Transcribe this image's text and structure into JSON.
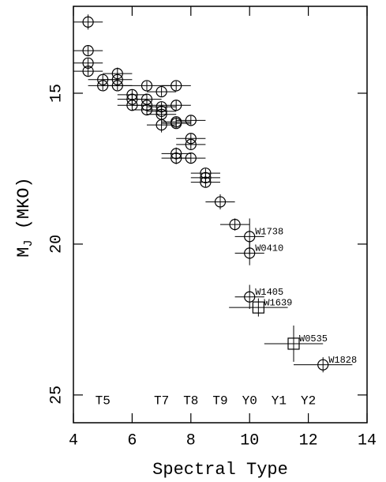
{
  "chart_data": {
    "type": "scatter",
    "xlabel": "Spectral Type",
    "ylabel": [
      "M",
      "J",
      " (MKO)"
    ],
    "xlim": [
      4,
      14
    ],
    "ylim": [
      12.12,
      25.92
    ],
    "y_inverted": true,
    "xticks": [
      4,
      6,
      8,
      10,
      12,
      14
    ],
    "yticks": [
      15,
      20,
      25
    ],
    "color": "#000000",
    "points": [
      {
        "x": 4.5,
        "y": 12.64,
        "xerr": 0.5,
        "yerr": 0.25,
        "marker": "circle"
      },
      {
        "x": 4.5,
        "y": 13.59,
        "xerr": 0.5,
        "yerr": 0.15,
        "marker": "circle"
      },
      {
        "x": 4.5,
        "y": 14.0,
        "xerr": 0.5,
        "yerr": 0.15,
        "marker": "circle"
      },
      {
        "x": 4.5,
        "y": 14.27,
        "xerr": 0.5,
        "yerr": 0.15,
        "marker": "circle"
      },
      {
        "x": 5.5,
        "y": 14.35,
        "xerr": 0.5,
        "yerr": 0.2,
        "marker": "circle"
      },
      {
        "x": 5.0,
        "y": 14.55,
        "xerr": 0.5,
        "yerr": 0.15,
        "marker": "circle"
      },
      {
        "x": 5.0,
        "y": 14.75,
        "xerr": 0.5,
        "yerr": 0.15,
        "marker": "circle"
      },
      {
        "x": 5.5,
        "y": 14.55,
        "xerr": 0.5,
        "yerr": 0.15,
        "marker": "circle"
      },
      {
        "x": 5.5,
        "y": 14.75,
        "xerr": 0.5,
        "yerr": 0.15,
        "marker": "circle"
      },
      {
        "x": 6.5,
        "y": 14.75,
        "xerr": 1.0,
        "yerr": 0.15,
        "marker": "circle"
      },
      {
        "x": 7.0,
        "y": 14.95,
        "xerr": 0.5,
        "yerr": 0.15,
        "marker": "circle"
      },
      {
        "x": 7.5,
        "y": 14.75,
        "xerr": 0.5,
        "yerr": 0.15,
        "marker": "circle"
      },
      {
        "x": 6.0,
        "y": 15.05,
        "xerr": 0.5,
        "yerr": 0.15,
        "marker": "circle"
      },
      {
        "x": 6.0,
        "y": 15.2,
        "xerr": 0.5,
        "yerr": 0.15,
        "marker": "circle"
      },
      {
        "x": 6.0,
        "y": 15.4,
        "xerr": 0.5,
        "yerr": 0.15,
        "marker": "circle"
      },
      {
        "x": 6.5,
        "y": 15.2,
        "xerr": 0.5,
        "yerr": 0.15,
        "marker": "circle"
      },
      {
        "x": 6.5,
        "y": 15.4,
        "xerr": 0.5,
        "yerr": 0.15,
        "marker": "circle"
      },
      {
        "x": 6.5,
        "y": 15.55,
        "xerr": 0.5,
        "yerr": 0.15,
        "marker": "circle"
      },
      {
        "x": 7.0,
        "y": 15.45,
        "xerr": 0.5,
        "yerr": 0.15,
        "marker": "circle"
      },
      {
        "x": 7.0,
        "y": 15.6,
        "xerr": 0.5,
        "yerr": 0.15,
        "marker": "circle"
      },
      {
        "x": 7.5,
        "y": 15.4,
        "xerr": 0.5,
        "yerr": 0.15,
        "marker": "circle"
      },
      {
        "x": 7.0,
        "y": 15.7,
        "xerr": 0.5,
        "yerr": 0.15,
        "marker": "circle"
      },
      {
        "x": 7.5,
        "y": 15.95,
        "xerr": 0.5,
        "yerr": 0.15,
        "marker": "circle"
      },
      {
        "x": 7.5,
        "y": 16.0,
        "xerr": 0.5,
        "yerr": 0.15,
        "marker": "circle"
      },
      {
        "x": 8.0,
        "y": 15.9,
        "xerr": 0.5,
        "yerr": 0.15,
        "marker": "circle"
      },
      {
        "x": 7.0,
        "y": 16.05,
        "xerr": 0.5,
        "yerr": 0.25,
        "marker": "circle"
      },
      {
        "x": 8.0,
        "y": 16.5,
        "xerr": 0.5,
        "yerr": 0.15,
        "marker": "circle"
      },
      {
        "x": 8.0,
        "y": 16.7,
        "xerr": 0.5,
        "yerr": 0.15,
        "marker": "circle"
      },
      {
        "x": 7.5,
        "y": 17.0,
        "xerr": 0.5,
        "yerr": 0.2,
        "marker": "circle"
      },
      {
        "x": 7.5,
        "y": 17.15,
        "xerr": 0.5,
        "yerr": 0.2,
        "marker": "circle"
      },
      {
        "x": 8.0,
        "y": 17.15,
        "xerr": 0.5,
        "yerr": 0.15,
        "marker": "circle"
      },
      {
        "x": 8.5,
        "y": 17.65,
        "xerr": 0.5,
        "yerr": 0.15,
        "marker": "circle"
      },
      {
        "x": 8.5,
        "y": 17.8,
        "xerr": 0.5,
        "yerr": 0.15,
        "marker": "circle"
      },
      {
        "x": 8.5,
        "y": 17.95,
        "xerr": 0.5,
        "yerr": 0.15,
        "marker": "circle"
      },
      {
        "x": 9.0,
        "y": 18.6,
        "xerr": 0.5,
        "yerr": 0.25,
        "marker": "circle"
      },
      {
        "x": 9.5,
        "y": 19.35,
        "xerr": 0.5,
        "yerr": 0.2,
        "marker": "circle"
      },
      {
        "x": 10.0,
        "y": 19.75,
        "xerr": 0.5,
        "yerr": 0.6,
        "marker": "circle",
        "label": "W1738"
      },
      {
        "x": 10.0,
        "y": 20.3,
        "xerr": 0.5,
        "yerr": 0.4,
        "marker": "circle",
        "label": "W0410"
      },
      {
        "x": 10.0,
        "y": 21.75,
        "xerr": 0.5,
        "yerr": 0.4,
        "marker": "circle",
        "label": "W1405"
      },
      {
        "x": 10.3,
        "y": 22.1,
        "xerr": 1.0,
        "yerr": 0.3,
        "marker": "square",
        "label": "W1639"
      },
      {
        "x": 11.5,
        "y": 23.3,
        "xerr": 1.0,
        "yerr": 0.6,
        "marker": "square",
        "label": "W0535"
      },
      {
        "x": 12.5,
        "y": 24.0,
        "xerr": 1.0,
        "yerr": 0.25,
        "marker": "circle",
        "label": "W1828"
      }
    ],
    "type_labels": [
      {
        "text": "T5",
        "x": 5,
        "y": 25.2
      },
      {
        "text": "T7",
        "x": 7,
        "y": 25.2
      },
      {
        "text": "T8",
        "x": 8,
        "y": 25.2
      },
      {
        "text": "T9",
        "x": 9,
        "y": 25.2
      },
      {
        "text": "Y0",
        "x": 10,
        "y": 25.2
      },
      {
        "text": "Y1",
        "x": 11,
        "y": 25.2
      },
      {
        "text": "Y2",
        "x": 12,
        "y": 25.2
      }
    ]
  }
}
